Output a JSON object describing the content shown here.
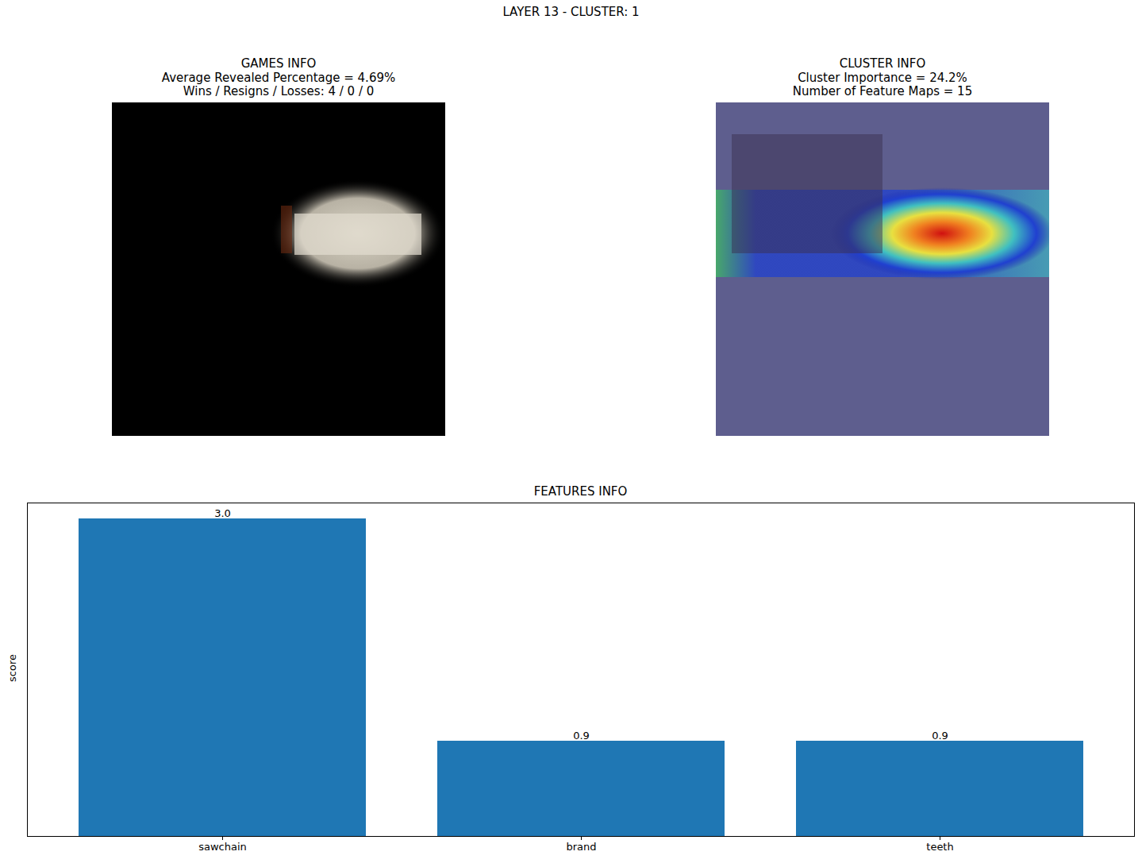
{
  "suptitle": "LAYER 13 - CLUSTER: 1",
  "panels": [
    {
      "title": [
        "GAMES INFO",
        "Average Revealed Percentage = 4.69%",
        "Wins / Resigns / Losses: 4 / 0 / 0"
      ]
    },
    {
      "title": [
        "CLUSTER INFO",
        "Cluster Importance = 24.2%",
        "Number of Feature Maps = 15"
      ]
    }
  ],
  "chart_data": {
    "type": "bar",
    "title": "FEATURES INFO",
    "y_label": "score",
    "categories": [
      "sawchain",
      "brand",
      "teeth"
    ],
    "values": [
      3.0,
      0.9,
      0.9
    ],
    "value_labels": [
      "3.0",
      "0.9",
      "0.9"
    ],
    "color": "#1f77b4",
    "ylim": [
      0,
      3.15
    ],
    "yticks": [],
    "data_labels": true,
    "tick_labels": "x"
  }
}
